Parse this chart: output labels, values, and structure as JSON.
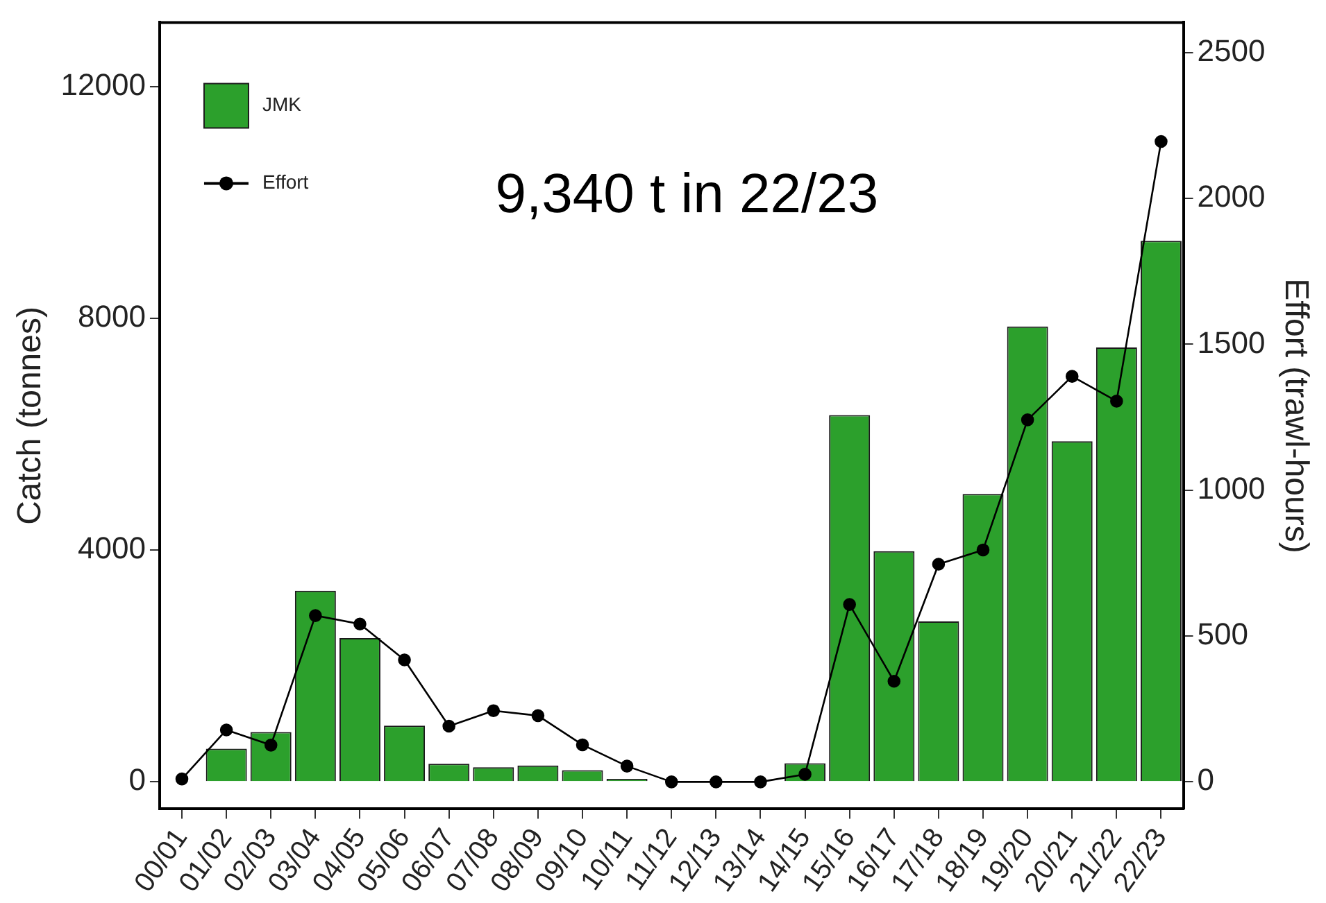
{
  "chart_data": {
    "type": "bar",
    "categories": [
      "00/01",
      "01/02",
      "02/03",
      "03/04",
      "04/05",
      "05/06",
      "06/07",
      "07/08",
      "08/09",
      "09/10",
      "10/11",
      "11/12",
      "12/13",
      "13/14",
      "14/15",
      "15/16",
      "16/17",
      "17/18",
      "18/19",
      "19/20",
      "20/21",
      "21/22",
      "22/23"
    ],
    "series": [
      {
        "name": "JMK",
        "color": "#2ca02c",
        "values": [
          0,
          570,
          860,
          3300,
          2480,
          970,
          310,
          250,
          280,
          200,
          50,
          0,
          0,
          0,
          320,
          6330,
          3980,
          2770,
          4970,
          7860,
          5880,
          7500,
          9340
        ]
      },
      {
        "name": "Effort",
        "type": "line",
        "axis": "y2",
        "color": "#000000",
        "values": [
          10,
          178,
          126,
          570,
          541,
          418,
          191,
          244,
          227,
          127,
          54,
          0,
          0,
          0,
          26,
          608,
          345,
          746,
          795,
          1241,
          1390,
          1305,
          2195
        ]
      }
    ],
    "ylabel": "Catch (tonnes)",
    "y2label": "Effort (trawl-hours)",
    "ylim": [
      -470,
      13110
    ],
    "yticks": [
      0,
      4000,
      8000,
      12000
    ],
    "y2lim": [
      -93,
      2603
    ],
    "y2ticks": [
      0,
      500,
      1000,
      1500,
      2000,
      2500
    ],
    "annotations": [
      "9,340 t in 22/23"
    ],
    "legend": "top left",
    "grid": false,
    "marker": "circle",
    "line_style": "solid"
  }
}
